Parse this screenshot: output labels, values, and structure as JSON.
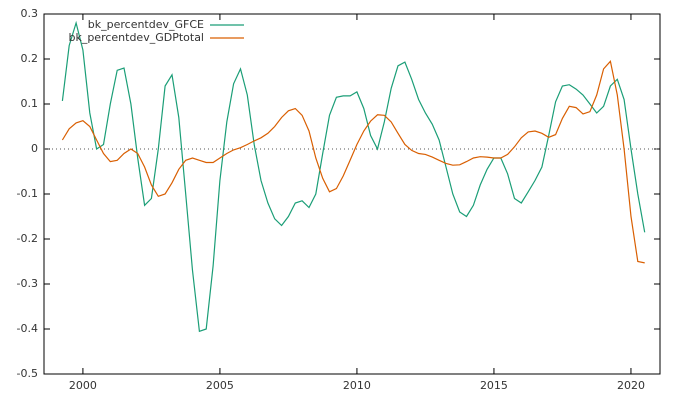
{
  "chart_data": {
    "type": "line",
    "x": [
      1999.25,
      1999.5,
      1999.75,
      2000,
      2000.25,
      2000.5,
      2000.75,
      2001,
      2001.25,
      2001.5,
      2001.75,
      2002,
      2002.25,
      2002.5,
      2002.75,
      2003,
      2003.25,
      2003.5,
      2003.75,
      2004,
      2004.25,
      2004.5,
      2004.75,
      2005,
      2005.25,
      2005.5,
      2005.75,
      2006,
      2006.25,
      2006.5,
      2006.75,
      2007,
      2007.25,
      2007.5,
      2007.75,
      2008,
      2008.25,
      2008.5,
      2008.75,
      2009,
      2009.25,
      2009.5,
      2009.75,
      2010,
      2010.25,
      2010.5,
      2010.75,
      2011,
      2011.25,
      2011.5,
      2011.75,
      2012,
      2012.25,
      2012.5,
      2012.75,
      2013,
      2013.25,
      2013.5,
      2013.75,
      2014,
      2014.25,
      2014.5,
      2014.75,
      2015,
      2015.25,
      2015.5,
      2015.75,
      2016,
      2016.25,
      2016.5,
      2016.75,
      2017,
      2017.25,
      2017.5,
      2017.75,
      2018,
      2018.25,
      2018.5,
      2018.75,
      2019,
      2019.25,
      2019.5,
      2019.75,
      2020,
      2020.25,
      2020.5
    ],
    "series": [
      {
        "name": "bk_percentdev_GFCE",
        "color": "#1b9e77",
        "values": [
          0.107,
          0.23,
          0.28,
          0.22,
          0.08,
          0.0,
          0.01,
          0.1,
          0.175,
          0.18,
          0.1,
          -0.02,
          -0.125,
          -0.11,
          0.0,
          0.14,
          0.165,
          0.07,
          -0.1,
          -0.27,
          -0.405,
          -0.4,
          -0.26,
          -0.07,
          0.06,
          0.145,
          0.178,
          0.12,
          0.01,
          -0.07,
          -0.12,
          -0.155,
          -0.17,
          -0.15,
          -0.12,
          -0.115,
          -0.13,
          -0.1,
          -0.01,
          0.075,
          0.115,
          0.118,
          0.118,
          0.127,
          0.09,
          0.03,
          0.0,
          0.06,
          0.135,
          0.185,
          0.193,
          0.155,
          0.11,
          0.08,
          0.055,
          0.02,
          -0.04,
          -0.1,
          -0.14,
          -0.15,
          -0.125,
          -0.08,
          -0.045,
          -0.02,
          -0.02,
          -0.055,
          -0.11,
          -0.12,
          -0.095,
          -0.07,
          -0.04,
          0.03,
          0.105,
          0.14,
          0.143,
          0.133,
          0.12,
          0.1,
          0.08,
          0.095,
          0.14,
          0.155,
          0.11,
          0.0,
          -0.1,
          -0.185
        ]
      },
      {
        "name": "bk_percentdev_GDPtotal",
        "color": "#d95f02",
        "values": [
          0.02,
          0.045,
          0.058,
          0.063,
          0.05,
          0.02,
          -0.01,
          -0.028,
          -0.025,
          -0.01,
          0.0,
          -0.01,
          -0.04,
          -0.08,
          -0.105,
          -0.1,
          -0.075,
          -0.045,
          -0.025,
          -0.02,
          -0.025,
          -0.03,
          -0.03,
          -0.02,
          -0.01,
          -0.002,
          0.003,
          0.01,
          0.018,
          0.025,
          0.035,
          0.05,
          0.07,
          0.085,
          0.09,
          0.075,
          0.04,
          -0.02,
          -0.065,
          -0.095,
          -0.088,
          -0.06,
          -0.025,
          0.01,
          0.04,
          0.062,
          0.076,
          0.075,
          0.06,
          0.035,
          0.01,
          -0.003,
          -0.01,
          -0.012,
          -0.018,
          -0.025,
          -0.032,
          -0.036,
          -0.035,
          -0.028,
          -0.02,
          -0.017,
          -0.018,
          -0.02,
          -0.02,
          -0.012,
          0.005,
          0.025,
          0.038,
          0.04,
          0.035,
          0.026,
          0.032,
          0.068,
          0.095,
          0.092,
          0.078,
          0.083,
          0.12,
          0.178,
          0.195,
          0.12,
          0.0,
          -0.15,
          -0.25,
          -0.253
        ]
      }
    ],
    "xlim": [
      1998.58,
      2021.06
    ],
    "xticks": [
      2000,
      2005,
      2010,
      2015,
      2020
    ],
    "ylim": [
      -0.5,
      0.3
    ],
    "yticks": [
      -0.5,
      -0.4,
      -0.3,
      -0.2,
      -0.1,
      0,
      0.1,
      0.2,
      0.3
    ],
    "zero_line": true,
    "legend": "top-left"
  }
}
